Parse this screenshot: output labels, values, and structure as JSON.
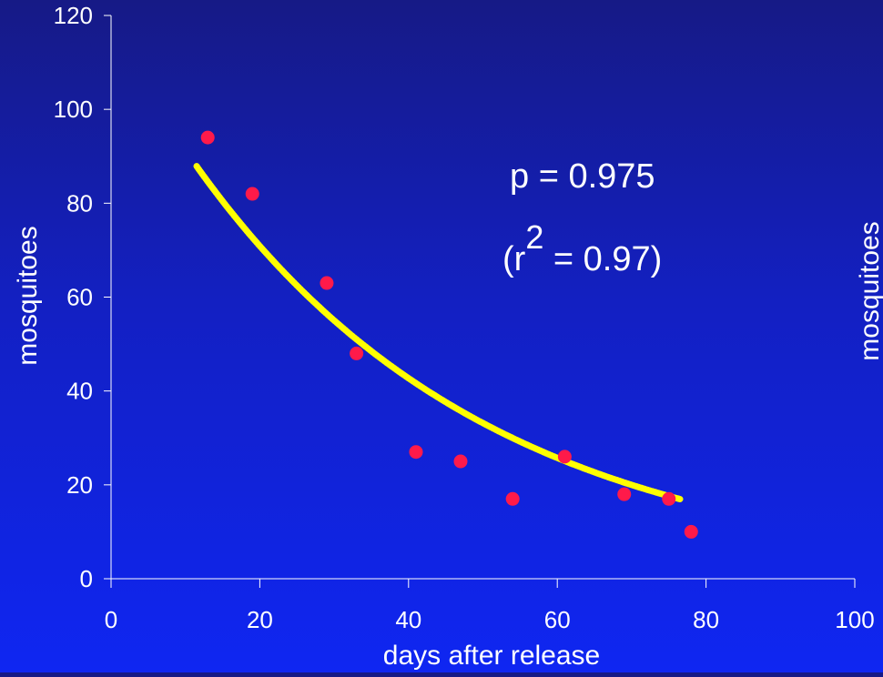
{
  "chart_data": {
    "type": "scatter",
    "xlabel": "days after release",
    "ylabel": "mosquitoes",
    "right_ylabel": "mosquitoes",
    "xlim": [
      0,
      100
    ],
    "ylim": [
      0,
      120
    ],
    "x_ticks": [
      "0",
      "20",
      "40",
      "60",
      "80",
      "100"
    ],
    "y_ticks": [
      "0",
      "20",
      "40",
      "60",
      "80",
      "100",
      "120"
    ],
    "grid": false,
    "annotation": {
      "line1": "p = 0.975",
      "line2_prefix": "(r",
      "line2_sup": "2",
      "line2_suffix": " = 0.97)"
    },
    "series": [
      {
        "type": "scatter",
        "color": "#ff1a4a",
        "x": [
          13,
          19,
          29,
          33,
          41,
          47,
          54,
          61,
          69,
          75,
          78
        ],
        "y": [
          94,
          82,
          63,
          48,
          27,
          25,
          17,
          26,
          18,
          17,
          10
        ]
      },
      {
        "type": "line",
        "color": "#ffff00",
        "fit": {
          "a": 117.6,
          "b": 0.975
        },
        "x_range": [
          11.5,
          76.5
        ]
      }
    ]
  }
}
